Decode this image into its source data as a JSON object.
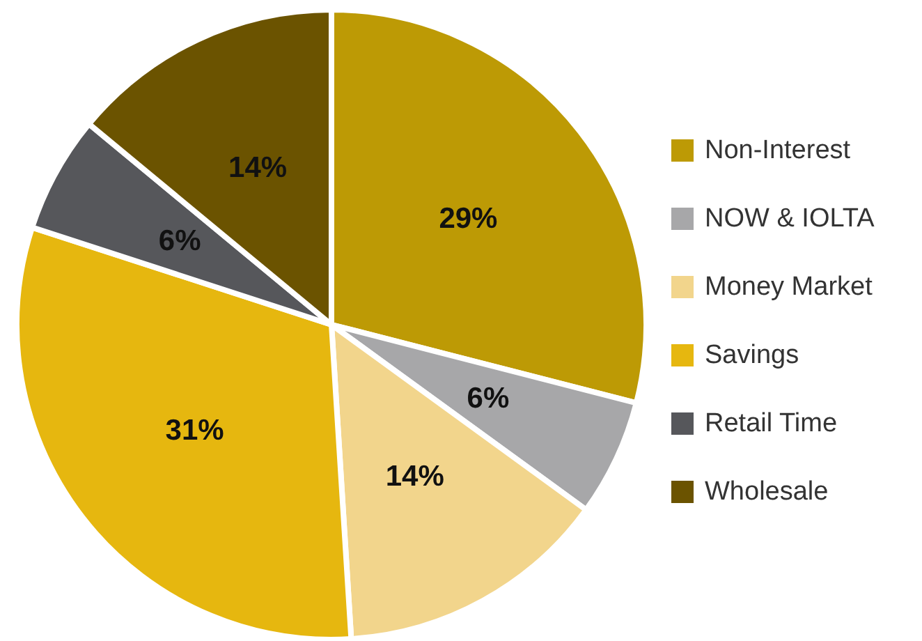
{
  "chart_data": {
    "type": "pie",
    "categories": [
      "Non-Interest",
      "NOW & IOLTA",
      "Money Market",
      "Savings",
      "Retail Time",
      "Wholesale"
    ],
    "values": [
      29,
      6,
      14,
      31,
      6,
      14
    ],
    "value_labels": [
      "29%",
      "6%",
      "14%",
      "31%",
      "6%",
      "14%"
    ],
    "colors": [
      "#bd9a05",
      "#a7a7a9",
      "#f2d58c",
      "#e6b70f",
      "#56575b",
      "#6b5300"
    ],
    "legend": "right"
  }
}
